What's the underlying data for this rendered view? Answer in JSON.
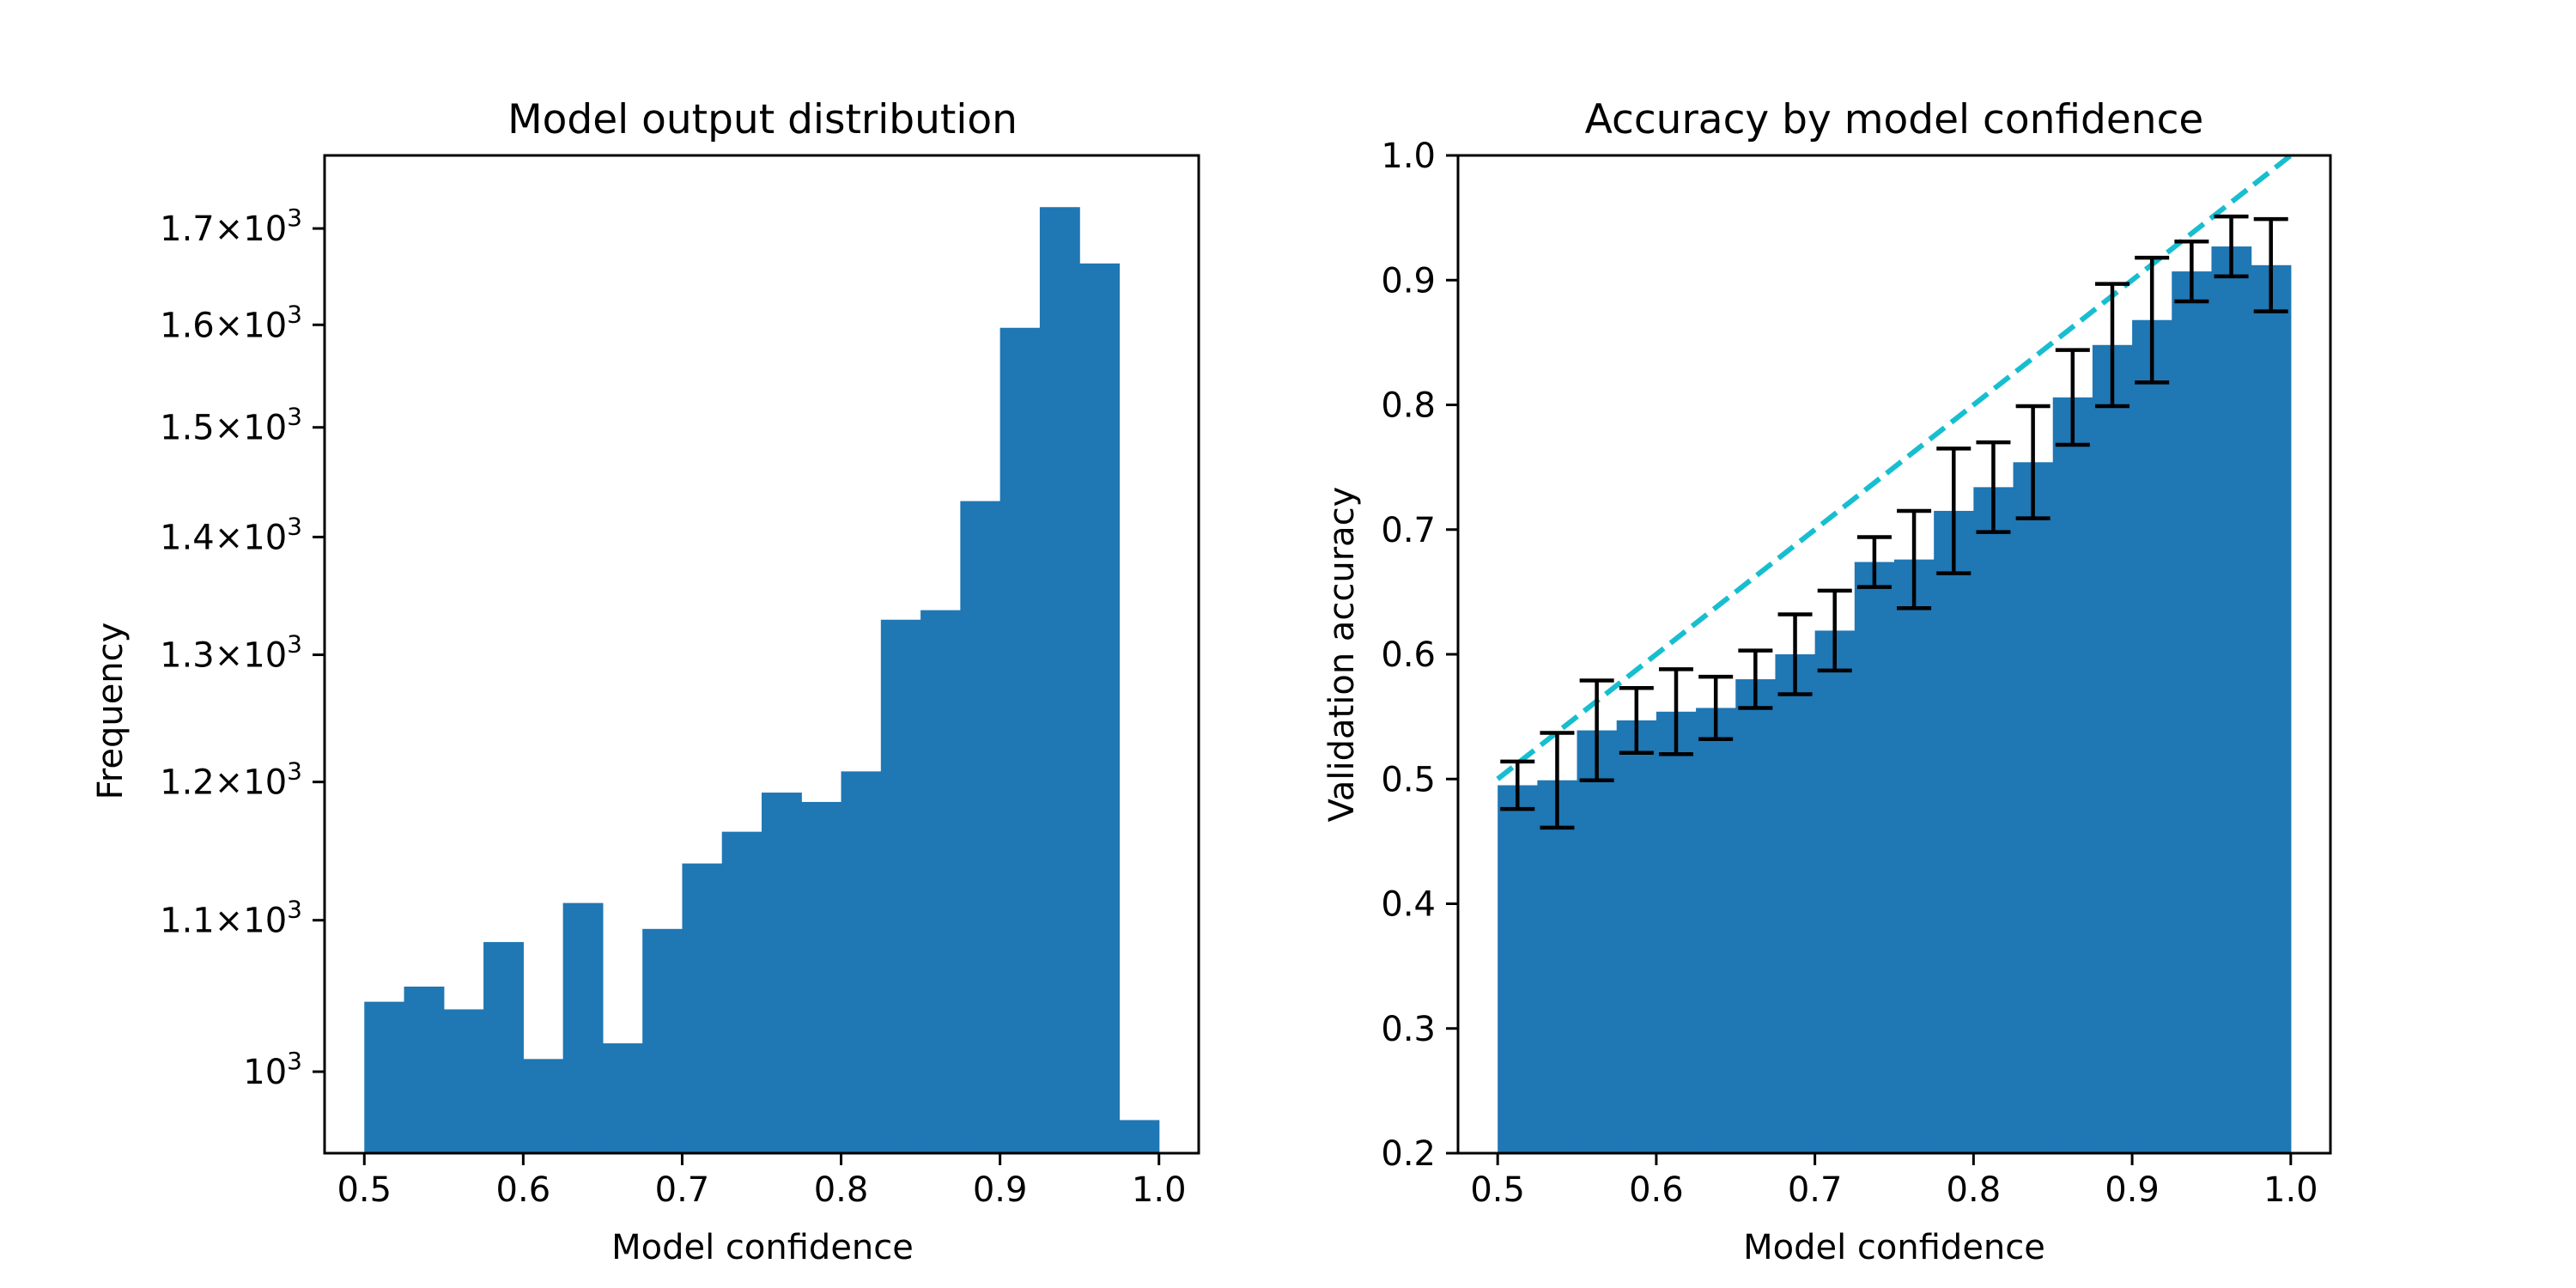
{
  "colors": {
    "bar": "#1f77b4",
    "reference_line": "#17becf",
    "error_bar": "#000000"
  },
  "chart_data": [
    {
      "type": "bar",
      "title": "Model output distribution",
      "xlabel": "Model confidence",
      "ylabel": "Frequency",
      "yscale": "log",
      "xlim": [
        0.475,
        1.025
      ],
      "ylim": [
        950,
        1780
      ],
      "x_ticks": [
        {
          "value": 0.5,
          "label": "0.5"
        },
        {
          "value": 0.6,
          "label": "0.6"
        },
        {
          "value": 0.7,
          "label": "0.7"
        },
        {
          "value": 0.8,
          "label": "0.8"
        },
        {
          "value": 0.9,
          "label": "0.9"
        },
        {
          "value": 1.0,
          "label": "1.0"
        }
      ],
      "y_ticks": [
        {
          "value": 1000,
          "base": "10",
          "exp": "3"
        },
        {
          "value": 1100,
          "coef": "1.1",
          "base": "10",
          "exp": "3"
        },
        {
          "value": 1200,
          "coef": "1.2",
          "base": "10",
          "exp": "3"
        },
        {
          "value": 1300,
          "coef": "1.3",
          "base": "10",
          "exp": "3"
        },
        {
          "value": 1400,
          "coef": "1.4",
          "base": "10",
          "exp": "3"
        },
        {
          "value": 1500,
          "coef": "1.5",
          "base": "10",
          "exp": "3"
        },
        {
          "value": 1600,
          "coef": "1.6",
          "base": "10",
          "exp": "3"
        },
        {
          "value": 1700,
          "coef": "1.7",
          "base": "10",
          "exp": "3"
        }
      ],
      "bin_edges": [
        0.5,
        0.525,
        0.55,
        0.575,
        0.6,
        0.625,
        0.65,
        0.675,
        0.7,
        0.725,
        0.75,
        0.775,
        0.8,
        0.825,
        0.85,
        0.875,
        0.9,
        0.925,
        0.95,
        0.975,
        1.0
      ],
      "values": [
        1045,
        1055,
        1040,
        1085,
        1008,
        1112,
        1018,
        1094,
        1140,
        1163,
        1192,
        1185,
        1208,
        1329,
        1337,
        1432,
        1597,
        1723,
        1663,
        970
      ]
    },
    {
      "type": "bar",
      "title": "Accuracy by model confidence",
      "xlabel": "Model confidence",
      "ylabel": "Validation accuracy",
      "xlim": [
        0.475,
        1.025
      ],
      "ylim": [
        0.2,
        1.0
      ],
      "x_ticks": [
        "0.5",
        "0.6",
        "0.7",
        "0.8",
        "0.9",
        "1.0"
      ],
      "y_ticks": [
        "0.2",
        "0.3",
        "0.4",
        "0.5",
        "0.6",
        "0.7",
        "0.8",
        "0.9",
        "1.0"
      ],
      "bin_edges": [
        0.5,
        0.525,
        0.55,
        0.575,
        0.6,
        0.625,
        0.65,
        0.675,
        0.7,
        0.725,
        0.75,
        0.775,
        0.8,
        0.825,
        0.85,
        0.875,
        0.9,
        0.925,
        0.95,
        0.975,
        1.0
      ],
      "values": [
        0.495,
        0.499,
        0.539,
        0.547,
        0.554,
        0.557,
        0.58,
        0.6,
        0.619,
        0.674,
        0.676,
        0.715,
        0.734,
        0.754,
        0.806,
        0.848,
        0.868,
        0.907,
        0.927,
        0.912
      ],
      "error": [
        0.019,
        0.038,
        0.04,
        0.026,
        0.034,
        0.025,
        0.023,
        0.032,
        0.032,
        0.02,
        0.039,
        0.05,
        0.036,
        0.045,
        0.038,
        0.049,
        0.05,
        0.024,
        0.024,
        0.037
      ],
      "reference_line": {
        "x": [
          0.5,
          1.0
        ],
        "y": [
          0.5,
          1.0
        ],
        "style": "dashed"
      }
    }
  ]
}
